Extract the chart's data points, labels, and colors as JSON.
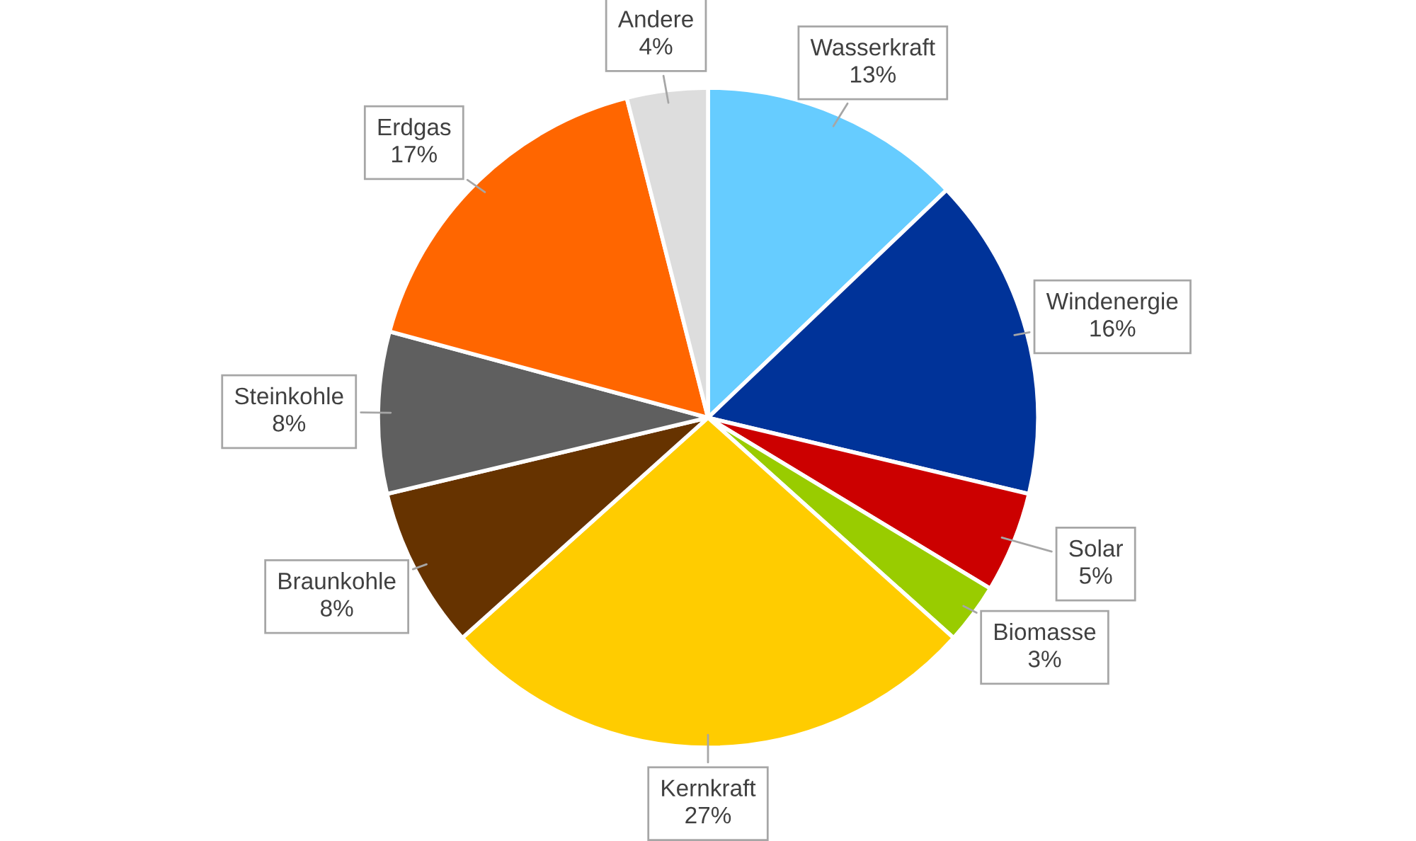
{
  "chart_data": {
    "type": "pie",
    "categories": [
      "Wasserkraft",
      "Windenergie",
      "Solar",
      "Biomasse",
      "Kernkraft",
      "Braunkohle",
      "Steinkohle",
      "Erdgas",
      "Andere"
    ],
    "values": [
      13,
      16,
      5,
      3,
      27,
      8,
      8,
      17,
      4
    ],
    "value_labels": [
      "13%",
      "16%",
      "5%",
      "3%",
      "27%",
      "8%",
      "8%",
      "17%",
      "4%"
    ],
    "colors": [
      "#66ccff",
      "#003399",
      "#cc0000",
      "#99cc00",
      "#ffcc00",
      "#663300",
      "#5f5f5f",
      "#ff6600",
      "#dddddd"
    ],
    "legend": false
  }
}
